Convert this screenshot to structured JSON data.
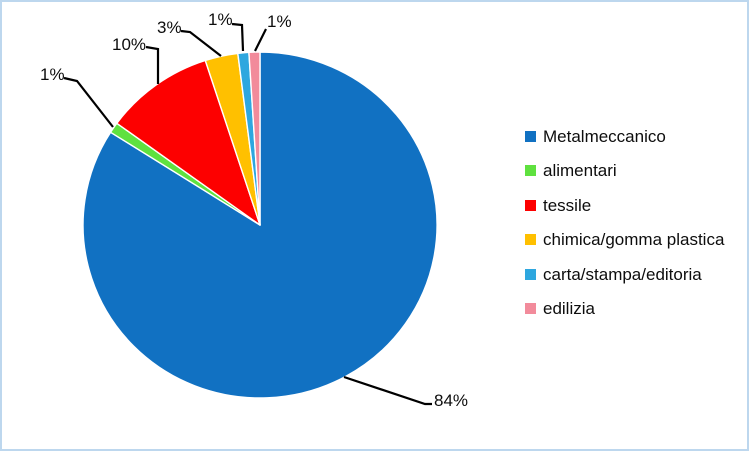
{
  "frame": {
    "background": "#FFFFFF",
    "border_color": "#BDD7EE"
  },
  "chart_data": {
    "type": "pie",
    "title": "",
    "legend_position": "right",
    "start_angle_deg": 0,
    "direction": "clockwise",
    "unit": "percent",
    "series": [
      {
        "name": "Metalmeccanico",
        "value": 84,
        "label": "84%",
        "color": "#1171C2"
      },
      {
        "name": "alimentari",
        "value": 1,
        "label": "1%",
        "color": "#5FE13F"
      },
      {
        "name": "tessile",
        "value": 10,
        "label": "10%",
        "color": "#FD0000"
      },
      {
        "name": "chimica/gomma plastica",
        "value": 3,
        "label": "3%",
        "color": "#FFC000"
      },
      {
        "name": "carta/stampa/editoria",
        "value": 1,
        "label": "1%",
        "color": "#2EA7DF"
      },
      {
        "name": "edilizia",
        "value": 1,
        "label": "1%",
        "color": "#F28B9B"
      }
    ]
  }
}
